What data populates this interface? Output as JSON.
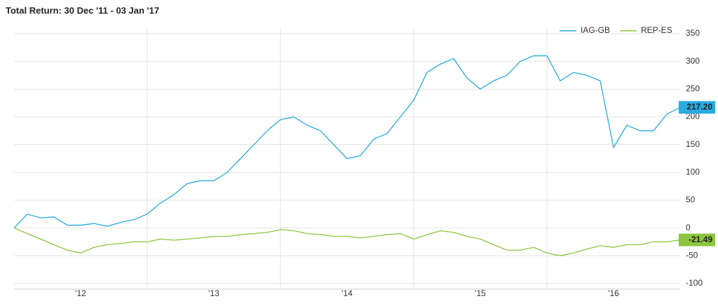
{
  "chart_data": {
    "type": "line",
    "title": "Total Return: 30 Dec '11 - 03 Jan '17",
    "x": [
      2012.0,
      2012.1,
      2012.2,
      2012.3,
      2012.4,
      2012.5,
      2012.6,
      2012.7,
      2012.8,
      2012.9,
      2013.0,
      2013.1,
      2013.2,
      2013.3,
      2013.4,
      2013.5,
      2013.6,
      2013.7,
      2013.8,
      2013.9,
      2014.0,
      2014.1,
      2014.2,
      2014.3,
      2014.4,
      2014.5,
      2014.6,
      2014.7,
      2014.8,
      2014.9,
      2015.0,
      2015.1,
      2015.2,
      2015.3,
      2015.4,
      2015.5,
      2015.6,
      2015.7,
      2015.8,
      2015.9,
      2016.0,
      2016.1,
      2016.2,
      2016.3,
      2016.4,
      2016.5,
      2016.6,
      2016.7,
      2016.8,
      2016.9,
      2017.0
    ],
    "series": [
      {
        "name": "IAG-GB",
        "color": "#29abe2",
        "last_label": "217.20",
        "values": [
          0,
          25,
          18,
          20,
          5,
          5,
          8,
          3,
          10,
          15,
          25,
          45,
          60,
          80,
          85,
          85,
          100,
          125,
          150,
          175,
          195,
          200,
          185,
          175,
          150,
          125,
          130,
          160,
          170,
          200,
          230,
          280,
          295,
          305,
          270,
          250,
          265,
          275,
          300,
          310,
          310,
          265,
          280,
          275,
          265,
          145,
          185,
          175,
          175,
          205,
          217.2
        ]
      },
      {
        "name": "REP-ES",
        "color": "#8cc63f",
        "last_label": "-21.49",
        "values": [
          0,
          -10,
          -20,
          -30,
          -40,
          -45,
          -35,
          -30,
          -28,
          -25,
          -25,
          -20,
          -22,
          -20,
          -18,
          -15,
          -15,
          -12,
          -10,
          -8,
          -3,
          -5,
          -10,
          -12,
          -15,
          -15,
          -18,
          -15,
          -12,
          -10,
          -20,
          -12,
          -5,
          -8,
          -15,
          -20,
          -30,
          -40,
          -40,
          -35,
          -45,
          -50,
          -45,
          -38,
          -32,
          -35,
          -30,
          -30,
          -25,
          -25,
          -21.49
        ]
      }
    ],
    "xlim": [
      2012,
      2017
    ],
    "xticks": [
      {
        "value": 2012.5,
        "label": "'12"
      },
      {
        "value": 2013.5,
        "label": "'13"
      },
      {
        "value": 2014.5,
        "label": "'14"
      },
      {
        "value": 2015.5,
        "label": "'15"
      },
      {
        "value": 2016.5,
        "label": "'16"
      }
    ],
    "xgrid": [
      2013,
      2014,
      2015,
      2016
    ],
    "ylim": [
      -100,
      350
    ],
    "yticks": [
      -100,
      -50,
      0,
      50,
      100,
      150,
      200,
      250,
      300,
      350
    ],
    "grid": true,
    "legend": "top-right"
  }
}
